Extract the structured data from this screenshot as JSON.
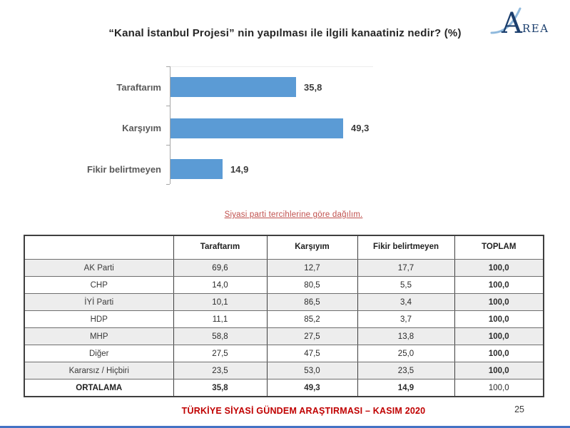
{
  "slide": {
    "title": "“Kanal İstanbul Projesi” nin yapılması ile ilgili kanaatiniz nedir? (%)",
    "subtitle": "Siyasi parti tercihlerine göre dağılım.",
    "logo": {
      "letter": "A",
      "rest": "REA"
    },
    "footer": {
      "text": "TÜRKİYE SİYASİ GÜNDEM ARAŞTIRMASI – KASIM 2020",
      "page_number": "25"
    }
  },
  "chart_data": {
    "type": "bar",
    "orientation": "horizontal",
    "title": "“Kanal İstanbul Projesi” nin yapılması ile ilgili kanaatiniz nedir? (%)",
    "categories": [
      "Taraftarım",
      "Karşıyım",
      "Fikir belirtmeyen"
    ],
    "values": [
      35.8,
      49.3,
      14.9
    ],
    "value_labels": [
      "35,8",
      "49,3",
      "14,9"
    ],
    "unit": "%",
    "xlim": [
      0,
      55
    ],
    "grid": false,
    "legend": false,
    "bar_color": "#5b9bd5"
  },
  "table": {
    "headers": [
      "",
      "Taraftarım",
      "Karşıyım",
      "Fikir belirtmeyen",
      "TOPLAM"
    ],
    "rows": [
      {
        "label": "AK Parti",
        "values": [
          "69,6",
          "12,7",
          "17,7",
          "100,0"
        ]
      },
      {
        "label": "CHP",
        "values": [
          "14,0",
          "80,5",
          "5,5",
          "100,0"
        ]
      },
      {
        "label": "İYİ Parti",
        "values": [
          "10,1",
          "86,5",
          "3,4",
          "100,0"
        ]
      },
      {
        "label": "HDP",
        "values": [
          "11,1",
          "85,2",
          "3,7",
          "100,0"
        ]
      },
      {
        "label": "MHP",
        "values": [
          "58,8",
          "27,5",
          "13,8",
          "100,0"
        ]
      },
      {
        "label": "Diğer",
        "values": [
          "27,5",
          "47,5",
          "25,0",
          "100,0"
        ]
      },
      {
        "label": "Kararsız / Hiçbiri",
        "values": [
          "23,5",
          "53,0",
          "23,5",
          "100,0"
        ]
      },
      {
        "label": "ORTALAMA",
        "values": [
          "35,8",
          "49,3",
          "14,9",
          "100,0"
        ],
        "emphasis": true
      }
    ]
  },
  "colors": {
    "bar_blue": "#5b9bd5",
    "footer_red": "#c00000",
    "subtitle_red": "#c0504d",
    "logo_navy": "#1c3f6e",
    "logo_swoosh": "#8fb9dd",
    "bottom_line_blue": "#4472c4",
    "zebra_gray": "#ededed"
  }
}
